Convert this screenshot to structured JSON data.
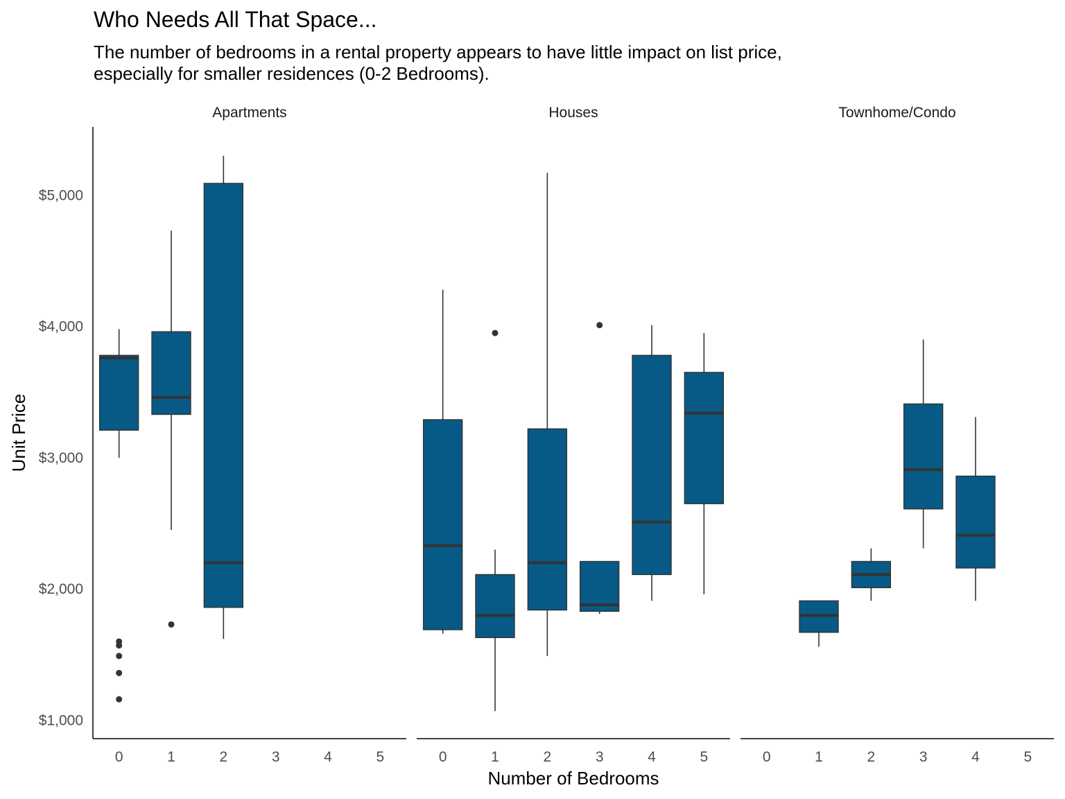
{
  "chart_data": {
    "type": "box",
    "title": "Who Needs All That Space...",
    "subtitle": "The number of bedrooms in a rental property appears to have little impact on list price,\nespecially for smaller residences (0-2 Bedrooms).",
    "xlabel": "Number of Bedrooms",
    "ylabel": "Unit Price",
    "categories": [
      "0",
      "1",
      "2",
      "3",
      "4",
      "5"
    ],
    "y_ticks": [
      {
        "value": 1000,
        "label": "$1,000"
      },
      {
        "value": 2000,
        "label": "$2,000"
      },
      {
        "value": 3000,
        "label": "$3,000"
      },
      {
        "value": 4000,
        "label": "$4,000"
      },
      {
        "value": 5000,
        "label": "$5,000"
      }
    ],
    "ylim": [
      860,
      5520
    ],
    "grid": false,
    "fill_color": "#075a85",
    "line_color": "#333333",
    "facets": [
      {
        "name": "Apartments",
        "boxes": [
          {
            "bedrooms": "0",
            "low": 3000,
            "q1": 3210,
            "median": 3760,
            "q3": 3780,
            "high": 3980,
            "outliers": [
              1160,
              1360,
              1490,
              1570,
              1600
            ]
          },
          {
            "bedrooms": "1",
            "low": 2450,
            "q1": 3330,
            "median": 3460,
            "q3": 3960,
            "high": 4730,
            "outliers": [
              1730
            ]
          },
          {
            "bedrooms": "2",
            "low": 1620,
            "q1": 1860,
            "median": 2200,
            "q3": 5090,
            "high": 5300,
            "outliers": []
          }
        ]
      },
      {
        "name": "Houses",
        "boxes": [
          {
            "bedrooms": "0",
            "low": 1660,
            "q1": 1690,
            "median": 2330,
            "q3": 3290,
            "high": 4280,
            "outliers": []
          },
          {
            "bedrooms": "1",
            "low": 1070,
            "q1": 1630,
            "median": 1800,
            "q3": 2110,
            "high": 2300,
            "outliers": [
              3950
            ]
          },
          {
            "bedrooms": "2",
            "low": 1490,
            "q1": 1840,
            "median": 2200,
            "q3": 3220,
            "high": 5170,
            "outliers": []
          },
          {
            "bedrooms": "3",
            "low": 1810,
            "q1": 1830,
            "median": 1880,
            "q3": 2210,
            "high": 2210,
            "outliers": [
              4010
            ]
          },
          {
            "bedrooms": "4",
            "low": 1910,
            "q1": 2110,
            "median": 2510,
            "q3": 3780,
            "high": 4010,
            "outliers": []
          },
          {
            "bedrooms": "5",
            "low": 1960,
            "q1": 2650,
            "median": 3340,
            "q3": 3650,
            "high": 3950,
            "outliers": []
          }
        ]
      },
      {
        "name": "Townhome/Condo",
        "boxes": [
          {
            "bedrooms": "1",
            "low": 1560,
            "q1": 1670,
            "median": 1800,
            "q3": 1910,
            "high": 1910,
            "outliers": []
          },
          {
            "bedrooms": "2",
            "low": 1910,
            "q1": 2010,
            "median": 2110,
            "q3": 2210,
            "high": 2310,
            "outliers": []
          },
          {
            "bedrooms": "3",
            "low": 2310,
            "q1": 2610,
            "median": 2910,
            "q3": 3410,
            "high": 3900,
            "outliers": []
          },
          {
            "bedrooms": "4",
            "low": 1910,
            "q1": 2160,
            "median": 2410,
            "q3": 2860,
            "high": 3310,
            "outliers": []
          }
        ]
      }
    ]
  }
}
